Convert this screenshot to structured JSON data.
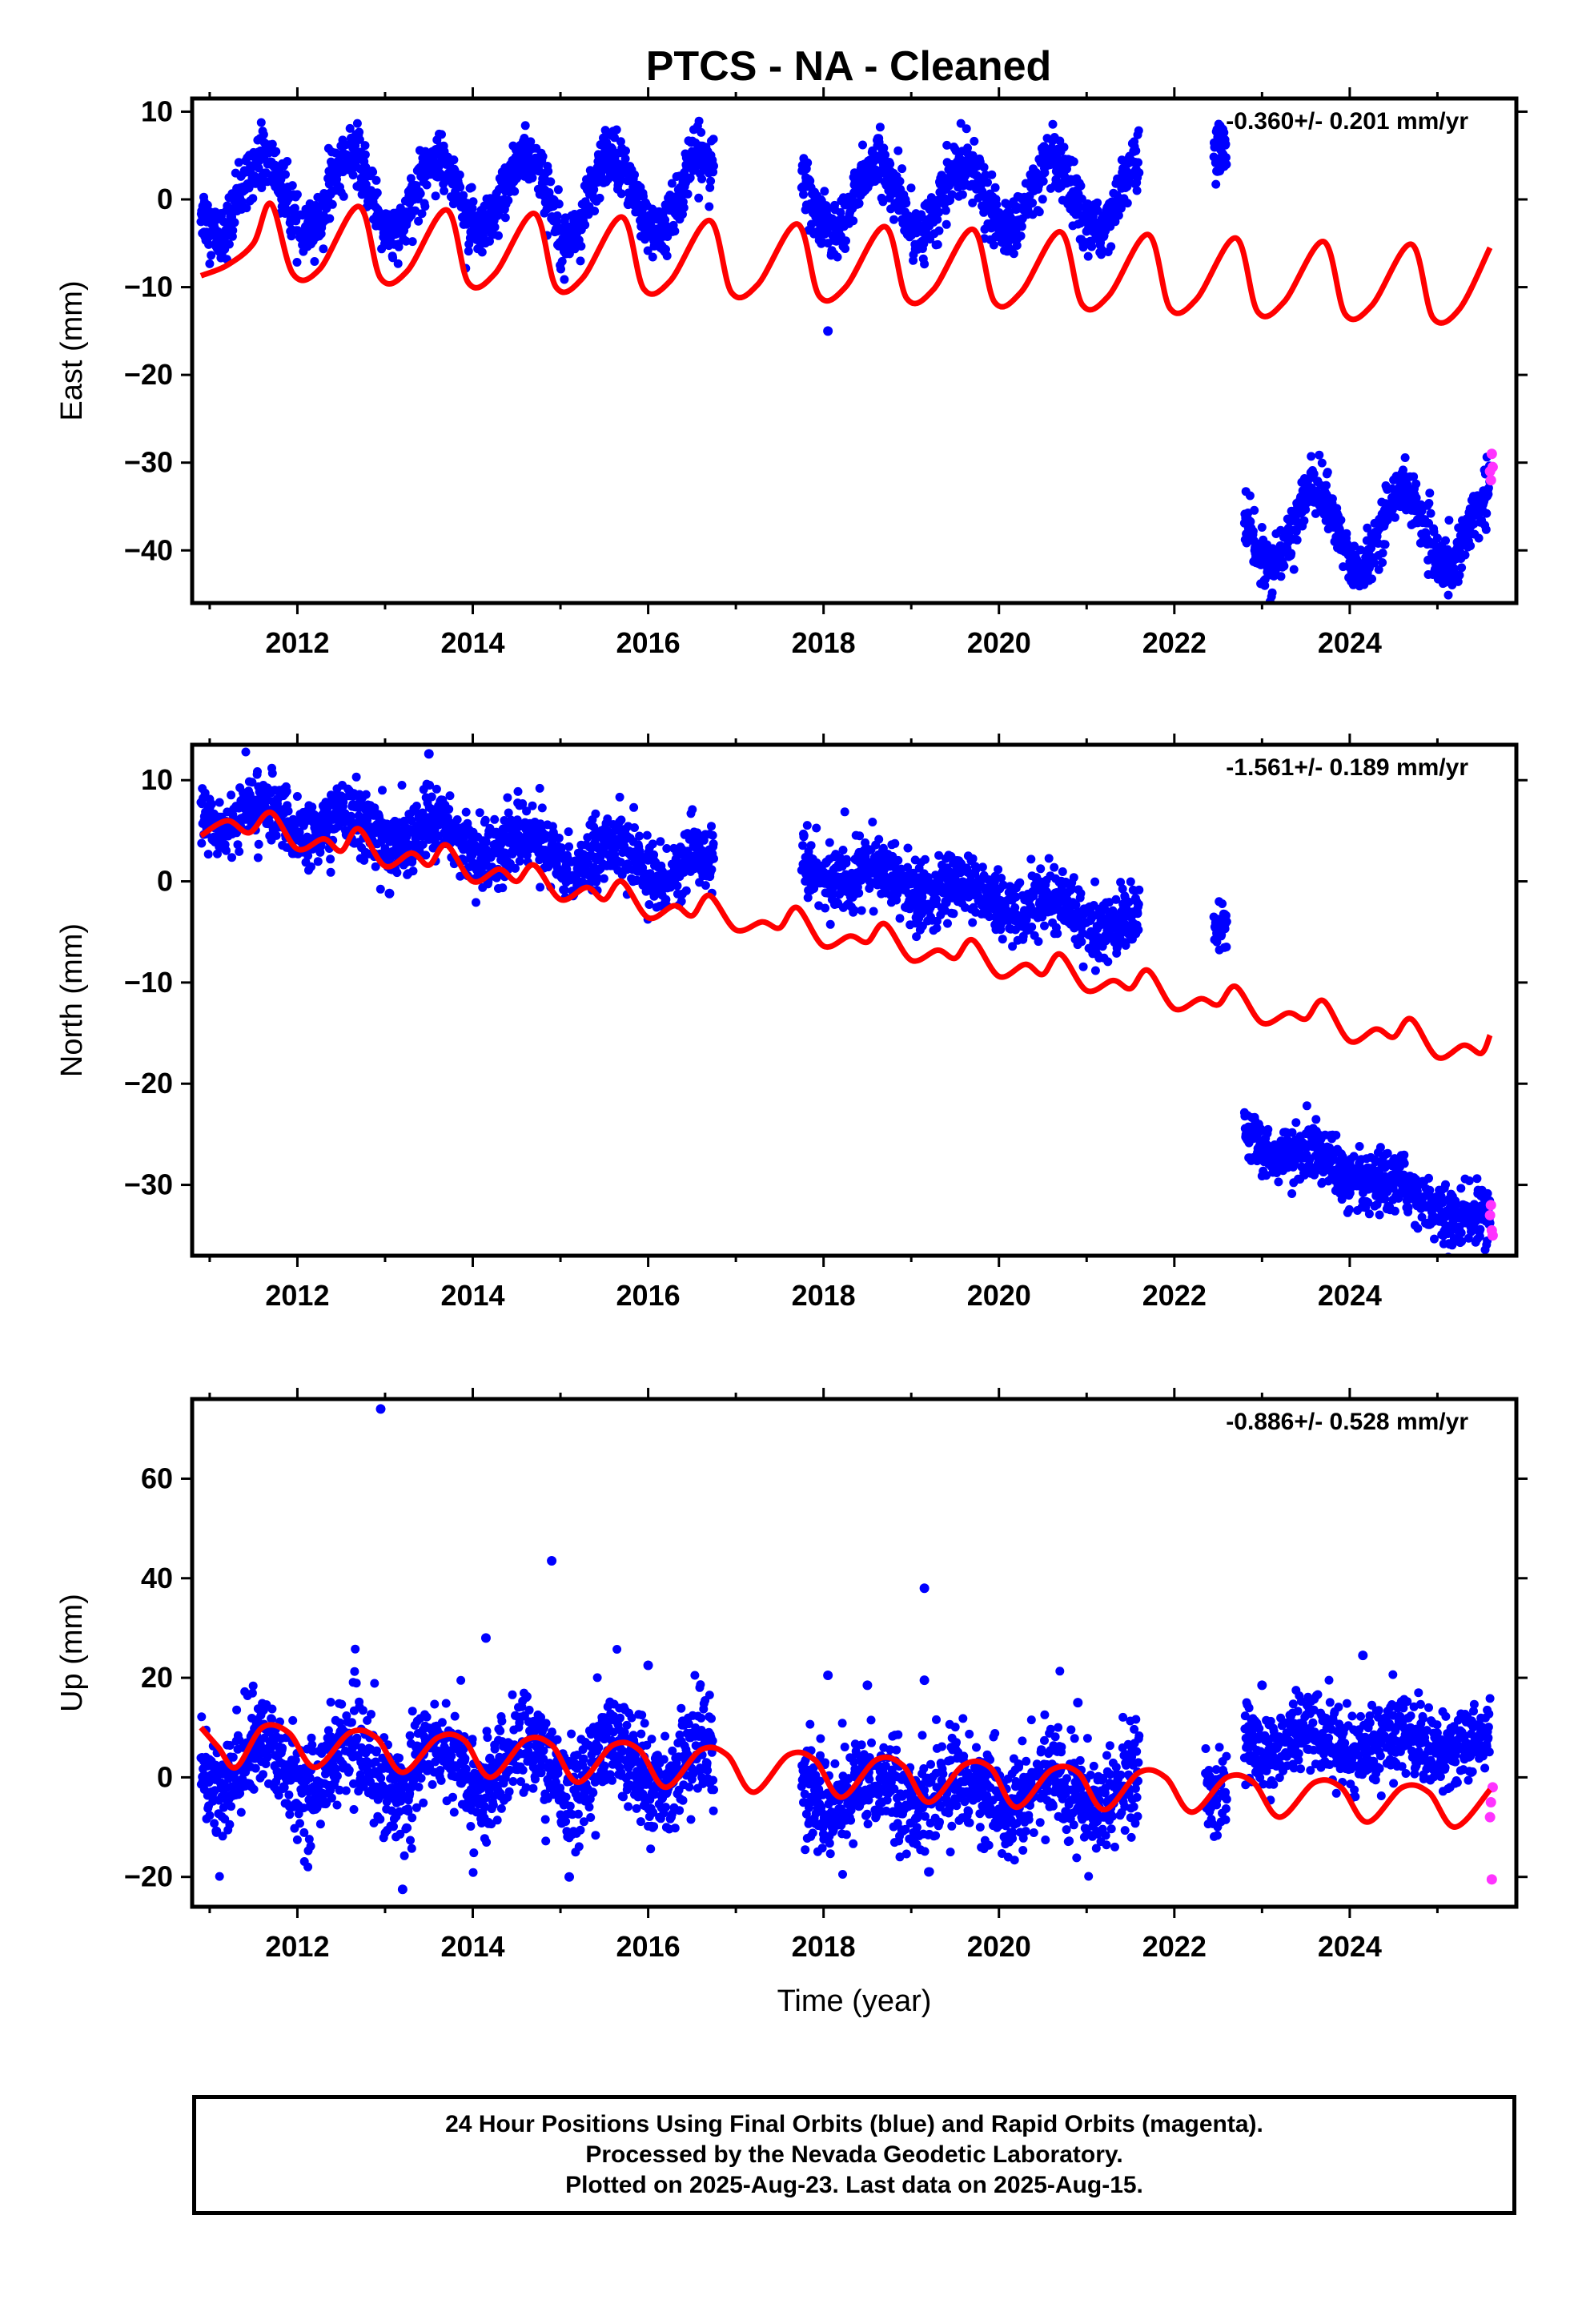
{
  "title": "PTCS  - NA - Cleaned",
  "colors": {
    "final": "#0000ff",
    "rapid": "#ff33ff",
    "model": "#ff0000",
    "axis": "#000000"
  },
  "chart_data": [
    {
      "type": "scatter",
      "name": "east",
      "ylabel": "East (mm)",
      "rate": "-0.360+/- 0.201 mm/yr",
      "xlim": [
        2010.8,
        2025.9
      ],
      "ylim": [
        -46,
        11.5
      ],
      "yticks": [
        10,
        0,
        -10,
        -20,
        -30,
        -40
      ],
      "xticks": [
        2012,
        2014,
        2016,
        2018,
        2020,
        2022,
        2024
      ],
      "model_series": [
        [
          2010.9,
          -8.7
        ],
        [
          2011.2,
          -7.5
        ],
        [
          2011.5,
          -5.0
        ],
        [
          2011.7,
          -0.5
        ],
        [
          2011.95,
          -8.5
        ],
        [
          2012.25,
          -8.0
        ],
        [
          2012.7,
          -0.8
        ],
        [
          2012.95,
          -9.0
        ],
        [
          2013.25,
          -8.2
        ],
        [
          2013.7,
          -1.2
        ],
        [
          2013.95,
          -9.5
        ],
        [
          2014.25,
          -8.5
        ],
        [
          2014.7,
          -1.6
        ],
        [
          2014.95,
          -10.0
        ],
        [
          2015.25,
          -9.0
        ],
        [
          2015.7,
          -2.0
        ],
        [
          2015.95,
          -10.2
        ],
        [
          2016.25,
          -9.3
        ],
        [
          2016.7,
          -2.4
        ],
        [
          2016.95,
          -10.6
        ],
        [
          2017.25,
          -9.7
        ],
        [
          2017.7,
          -2.8
        ],
        [
          2017.95,
          -11.0
        ],
        [
          2018.25,
          -10.0
        ],
        [
          2018.7,
          -3.1
        ],
        [
          2018.95,
          -11.3
        ],
        [
          2019.25,
          -10.3
        ],
        [
          2019.7,
          -3.4
        ],
        [
          2019.95,
          -11.7
        ],
        [
          2020.25,
          -10.6
        ],
        [
          2020.7,
          -3.7
        ],
        [
          2020.95,
          -12.0
        ],
        [
          2021.25,
          -11.0
        ],
        [
          2021.7,
          -4.0
        ],
        [
          2021.95,
          -12.4
        ],
        [
          2022.25,
          -11.4
        ],
        [
          2022.7,
          -4.4
        ],
        [
          2022.95,
          -12.8
        ],
        [
          2023.25,
          -11.7
        ],
        [
          2023.7,
          -4.8
        ],
        [
          2023.95,
          -13.1
        ],
        [
          2024.25,
          -12.1
        ],
        [
          2024.7,
          -5.1
        ],
        [
          2024.95,
          -13.5
        ],
        [
          2025.25,
          -12.5
        ],
        [
          2025.6,
          -5.5
        ]
      ],
      "segments": [
        {
          "start": 2010.9,
          "end": 2016.75,
          "offset": 0.5,
          "amp": 4.5,
          "noise": 1.6,
          "step": 0.004
        },
        {
          "start": 2017.75,
          "end": 2021.6,
          "offset": 0.2,
          "amp": 3.8,
          "noise": 1.6,
          "step": 0.004
        },
        {
          "start": 2022.45,
          "end": 2022.6,
          "offset": 5.0,
          "amp": 1.0,
          "noise": 1.5,
          "step": 0.004
        },
        {
          "start": 2022.8,
          "end": 2025.6,
          "offset": -37.5,
          "amp": 4.5,
          "noise": 1.5,
          "step": 0.004
        }
      ],
      "outliers": [
        [
          2018.05,
          -15.0
        ],
        [
          2017.8,
          3.5
        ]
      ],
      "rapid": [
        [
          2025.6,
          -31.0
        ],
        [
          2025.62,
          -29.0
        ],
        [
          2025.61,
          -32.0
        ],
        [
          2025.63,
          -30.5
        ]
      ]
    },
    {
      "type": "scatter",
      "name": "north",
      "ylabel": "North (mm)",
      "rate": "-1.561+/- 0.189 mm/yr",
      "xlim": [
        2010.8,
        2025.9
      ],
      "ylim": [
        -37,
        13.5
      ],
      "yticks": [
        10,
        0,
        -10,
        -20,
        -30
      ],
      "xticks": [
        2012,
        2014,
        2016,
        2018,
        2020,
        2022,
        2024
      ],
      "model_series": [
        [
          2010.9,
          4.5
        ],
        [
          2011.2,
          6.0
        ],
        [
          2011.45,
          4.8
        ],
        [
          2011.7,
          6.8
        ],
        [
          2012.0,
          3.2
        ],
        [
          2012.3,
          4.2
        ],
        [
          2012.5,
          3.0
        ],
        [
          2012.7,
          5.2
        ],
        [
          2013.0,
          1.5
        ],
        [
          2013.3,
          2.8
        ],
        [
          2013.5,
          1.6
        ],
        [
          2013.7,
          3.6
        ],
        [
          2014.0,
          0.0
        ],
        [
          2014.3,
          1.2
        ],
        [
          2014.5,
          0.0
        ],
        [
          2014.7,
          1.6
        ],
        [
          2015.0,
          -1.8
        ],
        [
          2015.3,
          -0.6
        ],
        [
          2015.5,
          -1.8
        ],
        [
          2015.7,
          0.0
        ],
        [
          2016.0,
          -3.6
        ],
        [
          2016.3,
          -2.4
        ],
        [
          2016.5,
          -3.4
        ],
        [
          2016.7,
          -1.4
        ],
        [
          2017.0,
          -4.8
        ],
        [
          2017.3,
          -4.0
        ],
        [
          2017.5,
          -4.6
        ],
        [
          2017.7,
          -2.6
        ],
        [
          2018.0,
          -6.4
        ],
        [
          2018.3,
          -5.4
        ],
        [
          2018.5,
          -6.0
        ],
        [
          2018.7,
          -4.2
        ],
        [
          2019.0,
          -7.8
        ],
        [
          2019.3,
          -6.8
        ],
        [
          2019.5,
          -7.6
        ],
        [
          2019.7,
          -5.8
        ],
        [
          2020.0,
          -9.4
        ],
        [
          2020.3,
          -8.2
        ],
        [
          2020.5,
          -9.2
        ],
        [
          2020.7,
          -7.2
        ],
        [
          2021.0,
          -10.8
        ],
        [
          2021.3,
          -9.8
        ],
        [
          2021.5,
          -10.6
        ],
        [
          2021.7,
          -8.8
        ],
        [
          2022.0,
          -12.6
        ],
        [
          2022.3,
          -11.6
        ],
        [
          2022.5,
          -12.2
        ],
        [
          2022.7,
          -10.4
        ],
        [
          2023.0,
          -14.0
        ],
        [
          2023.3,
          -13.0
        ],
        [
          2023.5,
          -13.6
        ],
        [
          2023.7,
          -11.8
        ],
        [
          2024.0,
          -15.8
        ],
        [
          2024.3,
          -14.6
        ],
        [
          2024.5,
          -15.4
        ],
        [
          2024.7,
          -13.6
        ],
        [
          2025.0,
          -17.4
        ],
        [
          2025.3,
          -16.2
        ],
        [
          2025.5,
          -17.0
        ],
        [
          2025.6,
          -15.2
        ]
      ],
      "segments": [
        {
          "start": 2010.9,
          "end": 2016.75,
          "offset": 7.0,
          "amp": 1.5,
          "noise": 1.6,
          "trend": -1.0,
          "step": 0.004
        },
        {
          "start": 2017.75,
          "end": 2021.6,
          "offset": 1.5,
          "amp": 1.2,
          "noise": 1.6,
          "trend": -1.5,
          "step": 0.004
        },
        {
          "start": 2022.45,
          "end": 2022.6,
          "offset": -5.0,
          "amp": 0.5,
          "noise": 1.2,
          "trend": 0,
          "step": 0.004
        },
        {
          "start": 2022.8,
          "end": 2025.6,
          "offset": -25.0,
          "amp": 1.0,
          "noise": 1.4,
          "trend": -3.2,
          "step": 0.004
        }
      ],
      "outliers": [
        [
          2013.05,
          -1.2
        ],
        [
          2013.5,
          12.6
        ]
      ],
      "rapid": [
        [
          2025.6,
          -33.0
        ],
        [
          2025.62,
          -34.5
        ],
        [
          2025.61,
          -32.0
        ],
        [
          2025.63,
          -35.0
        ]
      ]
    },
    {
      "type": "scatter",
      "name": "up",
      "ylabel": "Up (mm)",
      "rate": "-0.886+/- 0.528 mm/yr",
      "xlim": [
        2010.8,
        2025.9
      ],
      "ylim": [
        -26,
        76
      ],
      "yticks": [
        60,
        40,
        20,
        0,
        -20
      ],
      "xticks": [
        2012,
        2014,
        2016,
        2018,
        2020,
        2022,
        2024
      ],
      "xlabel": "Time (year)",
      "model_series": [
        [
          2010.9,
          10.0
        ],
        [
          2011.1,
          6.0
        ],
        [
          2011.3,
          2.0
        ],
        [
          2011.6,
          10.0
        ],
        [
          2011.9,
          9.0
        ],
        [
          2012.2,
          2.0
        ],
        [
          2012.6,
          9.0
        ],
        [
          2012.9,
          8.0
        ],
        [
          2013.2,
          1.0
        ],
        [
          2013.6,
          8.0
        ],
        [
          2013.9,
          7.5
        ],
        [
          2014.2,
          0.0
        ],
        [
          2014.6,
          7.5
        ],
        [
          2014.9,
          6.5
        ],
        [
          2015.2,
          -1.0
        ],
        [
          2015.6,
          6.5
        ],
        [
          2015.9,
          5.5
        ],
        [
          2016.2,
          -2.0
        ],
        [
          2016.6,
          5.5
        ],
        [
          2016.9,
          4.5
        ],
        [
          2017.2,
          -3.0
        ],
        [
          2017.6,
          4.5
        ],
        [
          2017.9,
          3.5
        ],
        [
          2018.2,
          -4.0
        ],
        [
          2018.6,
          3.5
        ],
        [
          2018.9,
          2.5
        ],
        [
          2019.2,
          -5.0
        ],
        [
          2019.6,
          2.5
        ],
        [
          2019.9,
          2.0
        ],
        [
          2020.2,
          -6.0
        ],
        [
          2020.6,
          1.5
        ],
        [
          2020.9,
          1.0
        ],
        [
          2021.2,
          -6.5
        ],
        [
          2021.6,
          1.0
        ],
        [
          2021.9,
          0.0
        ],
        [
          2022.2,
          -7.0
        ],
        [
          2022.6,
          0.0
        ],
        [
          2022.9,
          -1.0
        ],
        [
          2023.2,
          -8.0
        ],
        [
          2023.6,
          -1.0
        ],
        [
          2023.9,
          -2.0
        ],
        [
          2024.2,
          -9.0
        ],
        [
          2024.6,
          -2.0
        ],
        [
          2024.9,
          -3.0
        ],
        [
          2025.2,
          -10.0
        ],
        [
          2025.6,
          -2.5
        ]
      ],
      "segments": [
        {
          "start": 2010.9,
          "end": 2016.75,
          "offset": 2.0,
          "amp": 5.0,
          "noise": 5.0,
          "trend": 0,
          "step": 0.004
        },
        {
          "start": 2017.75,
          "end": 2021.6,
          "offset": -3.0,
          "amp": 3.5,
          "noise": 5.0,
          "trend": 0,
          "step": 0.004
        },
        {
          "start": 2022.35,
          "end": 2022.6,
          "offset": -4.0,
          "amp": 1.0,
          "noise": 4.0,
          "trend": 0,
          "step": 0.004
        },
        {
          "start": 2022.8,
          "end": 2025.6,
          "offset": 7.0,
          "amp": 2.5,
          "noise": 4.0,
          "trend": 0,
          "step": 0.004
        }
      ],
      "outliers": [
        [
          2012.95,
          74.0
        ],
        [
          2014.15,
          28.0
        ],
        [
          2014.9,
          43.5
        ],
        [
          2015.1,
          -20.0
        ],
        [
          2016.0,
          22.5
        ],
        [
          2019.15,
          38.0
        ],
        [
          2019.15,
          19.5
        ],
        [
          2024.15,
          24.5
        ],
        [
          2013.2,
          -22.5
        ],
        [
          2018.05,
          20.5
        ],
        [
          2018.5,
          18.5
        ],
        [
          2019.2,
          -19.0
        ],
        [
          2020.9,
          15.0
        ],
        [
          2023.0,
          18.5
        ]
      ],
      "rapid": [
        [
          2025.62,
          -20.5
        ],
        [
          2025.6,
          -8.0
        ],
        [
          2025.61,
          -5.0
        ],
        [
          2025.63,
          -2.0
        ]
      ]
    }
  ],
  "caption": {
    "line1": "24 Hour Positions Using Final Orbits (blue) and Rapid Orbits (magenta).",
    "line2": "Processed by the Nevada Geodetic Laboratory.",
    "line3": "Plotted on 2025-Aug-23. Last data on 2025-Aug-15."
  }
}
